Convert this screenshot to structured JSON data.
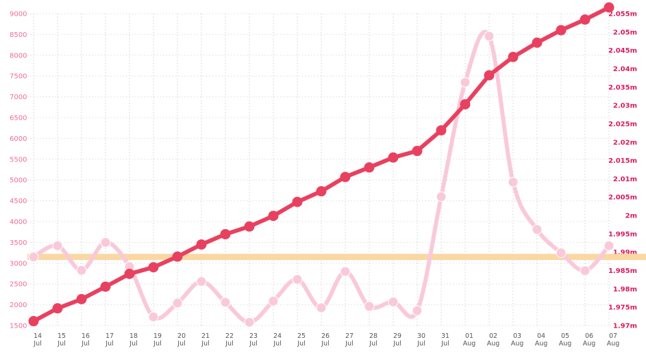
{
  "chart_data": {
    "type": "line",
    "categories": [
      "14 Jul",
      "15 Jul",
      "16 Jul",
      "17 Jul",
      "18 Jul",
      "19 Jul",
      "20 Jul",
      "21 Jul",
      "22 Jul",
      "23 Jul",
      "24 Jul",
      "25 Jul",
      "26 Jul",
      "27 Jul",
      "28 Jul",
      "29 Jul",
      "30 Jul",
      "31 Jul",
      "01 Aug",
      "02 Aug",
      "03 Aug",
      "04 Aug",
      "05 Aug",
      "06 Aug",
      "07 Aug"
    ],
    "x_tick_labels": [
      {
        "day": "14",
        "month": "Jul"
      },
      {
        "day": "15",
        "month": "Jul"
      },
      {
        "day": "16",
        "month": "Jul"
      },
      {
        "day": "17",
        "month": "Jul"
      },
      {
        "day": "18",
        "month": "Jul"
      },
      {
        "day": "19",
        "month": "Jul"
      },
      {
        "day": "20",
        "month": "Jul"
      },
      {
        "day": "21",
        "month": "Jul"
      },
      {
        "day": "22",
        "month": "Jul"
      },
      {
        "day": "23",
        "month": "Jul"
      },
      {
        "day": "24",
        "month": "Jul"
      },
      {
        "day": "25",
        "month": "Jul"
      },
      {
        "day": "26",
        "month": "Jul"
      },
      {
        "day": "27",
        "month": "Jul"
      },
      {
        "day": "28",
        "month": "Jul"
      },
      {
        "day": "29",
        "month": "Jul"
      },
      {
        "day": "30",
        "month": "Jul"
      },
      {
        "day": "31",
        "month": "Jul"
      },
      {
        "day": "01",
        "month": "Aug"
      },
      {
        "day": "02",
        "month": "Aug"
      },
      {
        "day": "03",
        "month": "Aug"
      },
      {
        "day": "04",
        "month": "Aug"
      },
      {
        "day": "05",
        "month": "Aug"
      },
      {
        "day": "06",
        "month": "Aug"
      },
      {
        "day": "07",
        "month": "Aug"
      }
    ],
    "y_left": {
      "ylim": [
        1500,
        9000
      ],
      "ticks": [
        "9000",
        "8500",
        "8000",
        "7500",
        "7000",
        "6500",
        "6000",
        "5500",
        "5000",
        "4500",
        "4000",
        "3500",
        "3000",
        "2500",
        "2000",
        "1500"
      ]
    },
    "y_right": {
      "ylim": [
        1.97,
        2.055
      ],
      "ticks": [
        "2.055m",
        "2.05m",
        "2.045m",
        "2.04m",
        "2.035m",
        "2.03m",
        "2.025m",
        "2.02m",
        "2.015m",
        "2.01m",
        "2.005m",
        "2m",
        "1.995m",
        "1.99m",
        "1.985m",
        "1.98m",
        "1.975m",
        "1.97m"
      ]
    },
    "series": [
      {
        "axis": "left",
        "color": "#f9c9da",
        "values": [
          3150,
          3420,
          2830,
          3500,
          2920,
          1710,
          2040,
          2560,
          2060,
          1580,
          2090,
          2610,
          1930,
          2800,
          1960,
          2070,
          1860,
          4600,
          7350,
          8460,
          4950,
          3810,
          3250,
          2820,
          3420
        ]
      },
      {
        "axis": "right",
        "color": "#e8415f",
        "values": [
          1.9712,
          1.9747,
          1.9772,
          1.9806,
          1.9841,
          1.9859,
          1.9888,
          1.9921,
          1.9949,
          1.997,
          1.9999,
          2.0037,
          2.0066,
          2.0105,
          2.0131,
          2.0158,
          2.0176,
          2.0232,
          2.0303,
          2.0382,
          2.0432,
          2.0471,
          2.0505,
          2.0534,
          2.0567
        ]
      }
    ],
    "reference_line": {
      "axis": "left",
      "value": 3150,
      "color": "#fbd7a2"
    },
    "grid": true
  }
}
